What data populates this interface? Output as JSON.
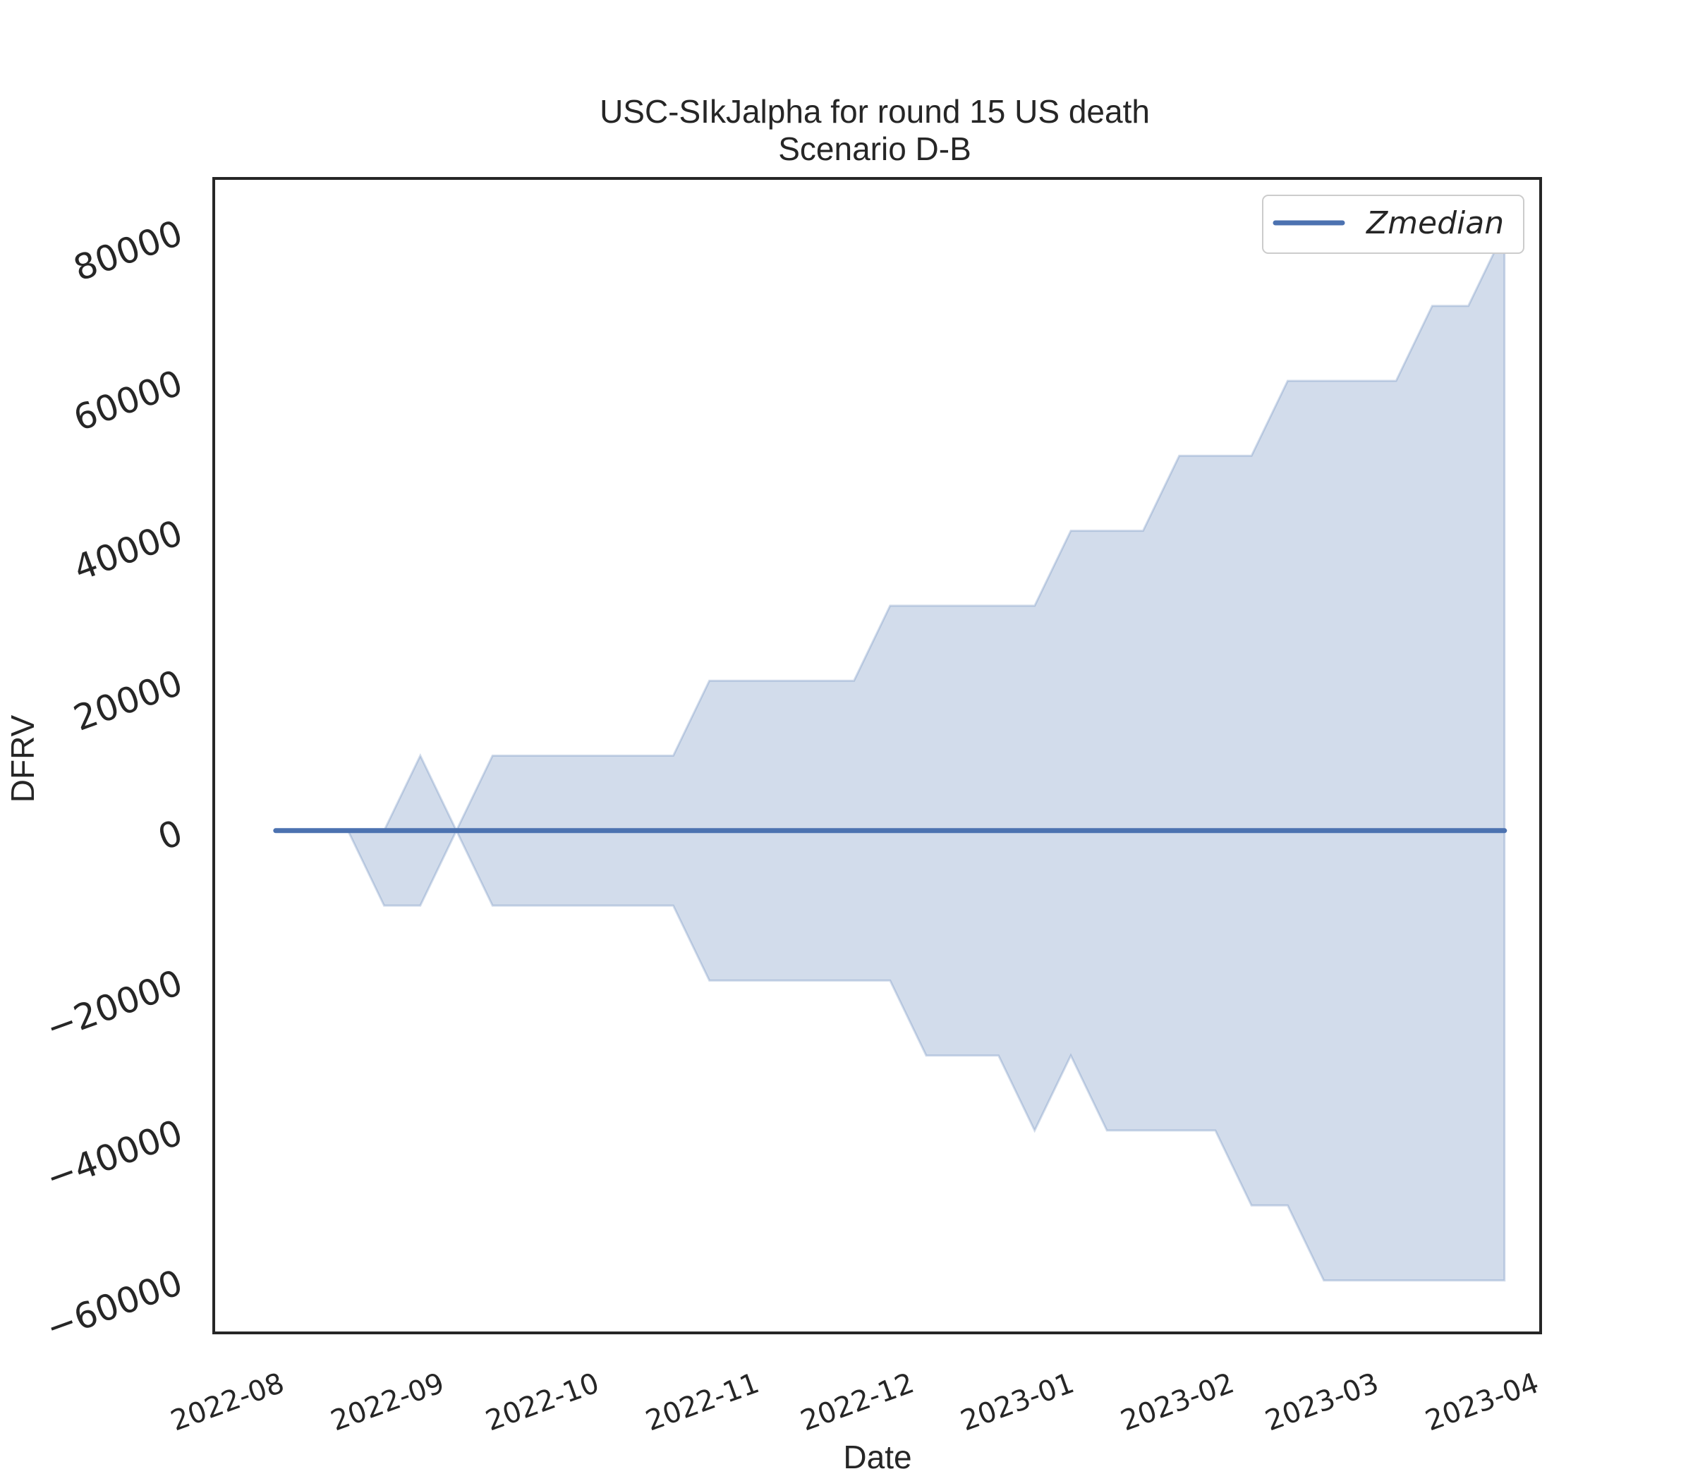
{
  "chart_data": {
    "type": "area",
    "title": "USC-SIkJalpha for round 15 US death",
    "subtitle": "Scenario D-B",
    "xlabel": "Date",
    "ylabel": "DFRV",
    "x_tick_labels": [
      "2022-08",
      "2022-09",
      "2022-10",
      "2022-11",
      "2022-12",
      "2023-01",
      "2023-02",
      "2023-03",
      "2023-04"
    ],
    "x_tick_dates": [
      "2022-08-01",
      "2022-09-01",
      "2022-10-01",
      "2022-11-01",
      "2022-12-01",
      "2023-01-01",
      "2023-02-01",
      "2023-03-01",
      "2023-04-01"
    ],
    "x_range": [
      "2022-07-18",
      "2023-04-01"
    ],
    "y_ticks": [
      -60000,
      -40000,
      -20000,
      0,
      20000,
      40000,
      60000,
      80000
    ],
    "y_tick_labels": [
      "−60000",
      "−40000",
      "−20000",
      "0",
      "20000",
      "40000",
      "60000",
      "80000"
    ],
    "ylim": [
      -67000,
      87000
    ],
    "grid": false,
    "legend": {
      "position": "top-right",
      "entries": [
        "Zmedian"
      ]
    },
    "colors": {
      "line": "#4c72b0",
      "band": "#4c72b0"
    },
    "series": [
      {
        "name": "Zmedian",
        "x": [
          "2022-07-30",
          "2022-08-06",
          "2022-08-13",
          "2022-08-20",
          "2022-08-27",
          "2022-09-03",
          "2022-09-10",
          "2022-09-17",
          "2022-09-24",
          "2022-10-01",
          "2022-10-08",
          "2022-10-15",
          "2022-10-22",
          "2022-10-29",
          "2022-11-05",
          "2022-11-12",
          "2022-11-19",
          "2022-11-26",
          "2022-12-03",
          "2022-12-10",
          "2022-12-17",
          "2022-12-24",
          "2022-12-31",
          "2023-01-07",
          "2023-01-14",
          "2023-01-21",
          "2023-01-28",
          "2023-02-04",
          "2023-02-11",
          "2023-02-18",
          "2023-02-25",
          "2023-03-04",
          "2023-03-11",
          "2023-03-18",
          "2023-03-25"
        ],
        "y": [
          0,
          0,
          0,
          0,
          0,
          0,
          0,
          0,
          0,
          0,
          0,
          0,
          0,
          0,
          0,
          0,
          0,
          0,
          0,
          0,
          0,
          0,
          0,
          0,
          0,
          0,
          0,
          0,
          0,
          0,
          0,
          0,
          0,
          0,
          0
        ],
        "lower": [
          0,
          0,
          0,
          -10000,
          -10000,
          0,
          -10000,
          -10000,
          -10000,
          -10000,
          -10000,
          -10000,
          -20000,
          -20000,
          -20000,
          -20000,
          -20000,
          -20000,
          -30000,
          -30000,
          -30000,
          -40000,
          -30000,
          -40000,
          -40000,
          -40000,
          -40000,
          -50000,
          -50000,
          -60000,
          -60000,
          -60000,
          -60000,
          -60000,
          -60000
        ],
        "upper": [
          0,
          0,
          0,
          0,
          10000,
          0,
          10000,
          10000,
          10000,
          10000,
          10000,
          10000,
          20000,
          20000,
          20000,
          20000,
          20000,
          30000,
          30000,
          30000,
          30000,
          30000,
          40000,
          40000,
          40000,
          50000,
          50000,
          50000,
          60000,
          60000,
          60000,
          60000,
          70000,
          70000,
          80000
        ]
      }
    ]
  }
}
